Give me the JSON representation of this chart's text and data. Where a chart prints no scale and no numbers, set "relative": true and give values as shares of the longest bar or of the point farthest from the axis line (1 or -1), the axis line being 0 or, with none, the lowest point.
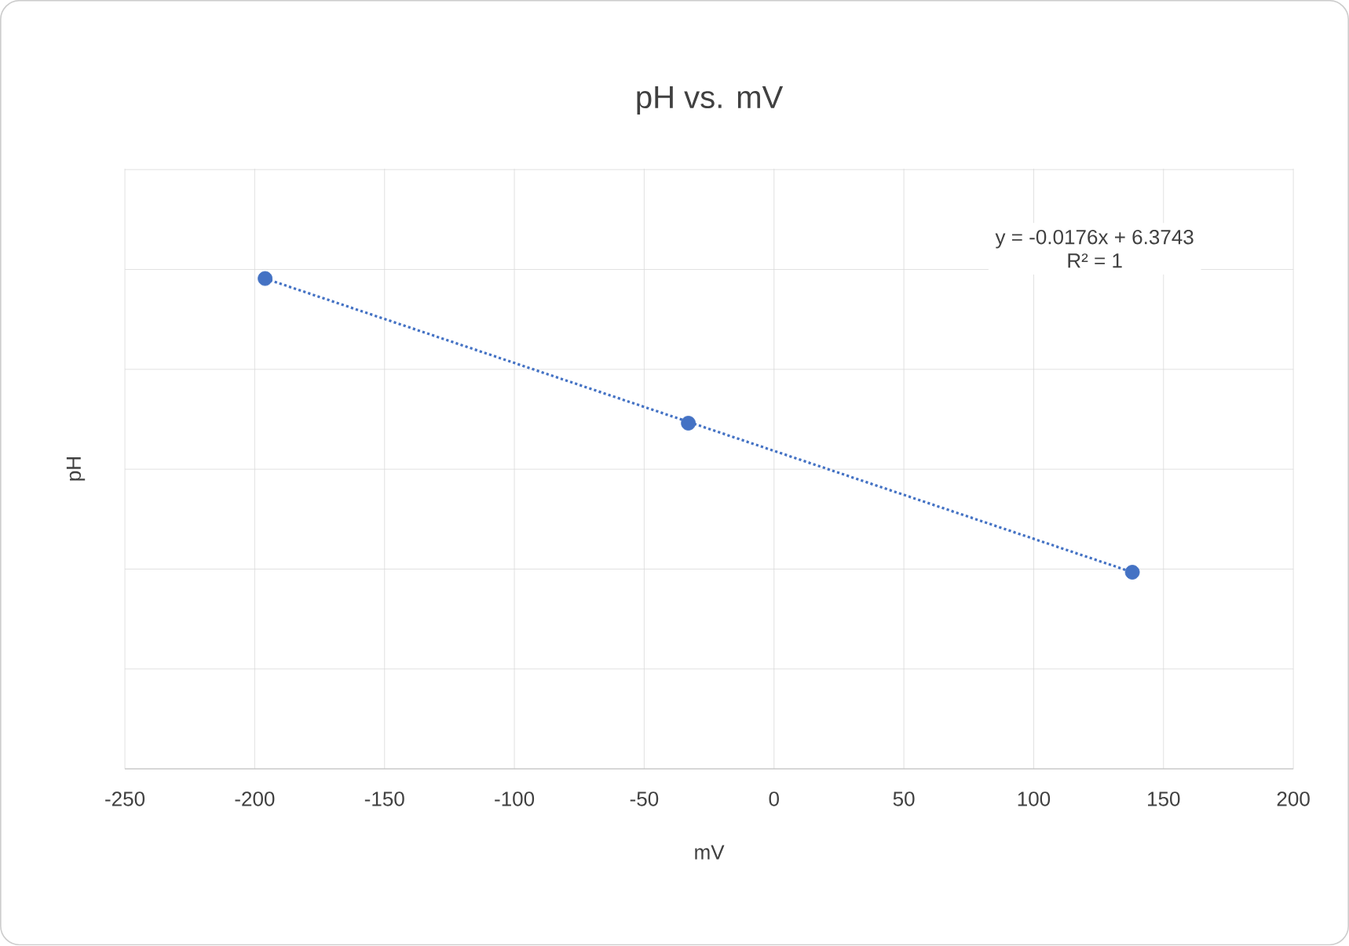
{
  "chart_data": {
    "type": "scatter",
    "title": "pH vs. mV",
    "xlabel": "mV",
    "ylabel": "pH",
    "xlim": [
      -250,
      200
    ],
    "xticks": [
      -250,
      -200,
      -150,
      -100,
      -50,
      0,
      50,
      100,
      150,
      200
    ],
    "relative": true,
    "grid": true,
    "tick_labels": "x",
    "annotations": [
      "y = -0.0176x + 6.3743",
      "R² = 1"
    ],
    "series": [
      {
        "color": "#4472c4",
        "marker": "circle",
        "x": [
          -196,
          -33,
          138
        ],
        "values": [
          1,
          0.705,
          0.401
        ]
      },
      {
        "type": "line",
        "color": "#4472c4",
        "line_style": "dotted",
        "x": [
          -196,
          138
        ],
        "values": [
          1,
          0.401
        ]
      }
    ]
  }
}
